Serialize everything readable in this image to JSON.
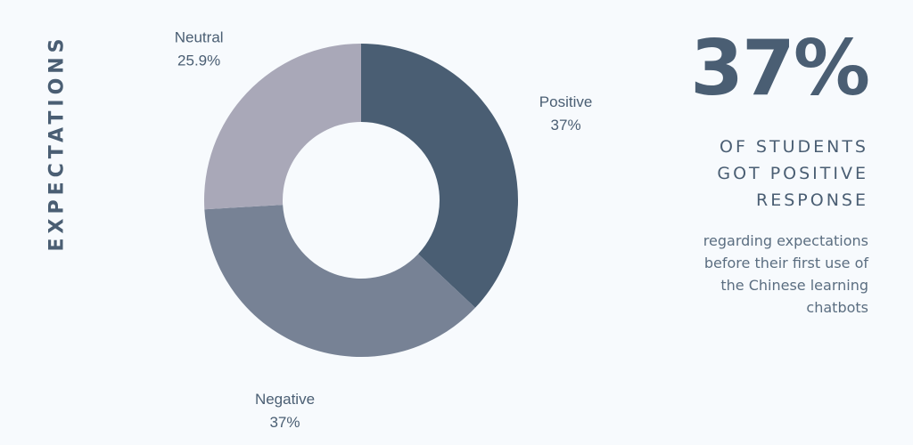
{
  "side_title": "EXPECTATIONS",
  "colors": {
    "background": "#f7fafd",
    "text": "#4a5e73",
    "positive": "#4a5e73",
    "negative": "#778295",
    "neutral": "#a9a8b8"
  },
  "chart_data": {
    "type": "pie",
    "donut": true,
    "title": "",
    "slices": [
      {
        "name": "Positive",
        "value": 37,
        "label": "37%",
        "color": "#4a5e73"
      },
      {
        "name": "Negative",
        "value": 37,
        "label": "37%",
        "color": "#778295"
      },
      {
        "name": "Neutral",
        "value": 25.9,
        "label": "25.9%",
        "color": "#a9a8b8"
      }
    ],
    "legend": "none"
  },
  "stat": {
    "value": "37%",
    "headline_lines": [
      "OF STUDENTS",
      "GOT POSITIVE",
      "RESPONSE"
    ],
    "description_lines": [
      "regarding expectations",
      "before their first use of",
      "the Chinese learning",
      "chatbots"
    ]
  }
}
